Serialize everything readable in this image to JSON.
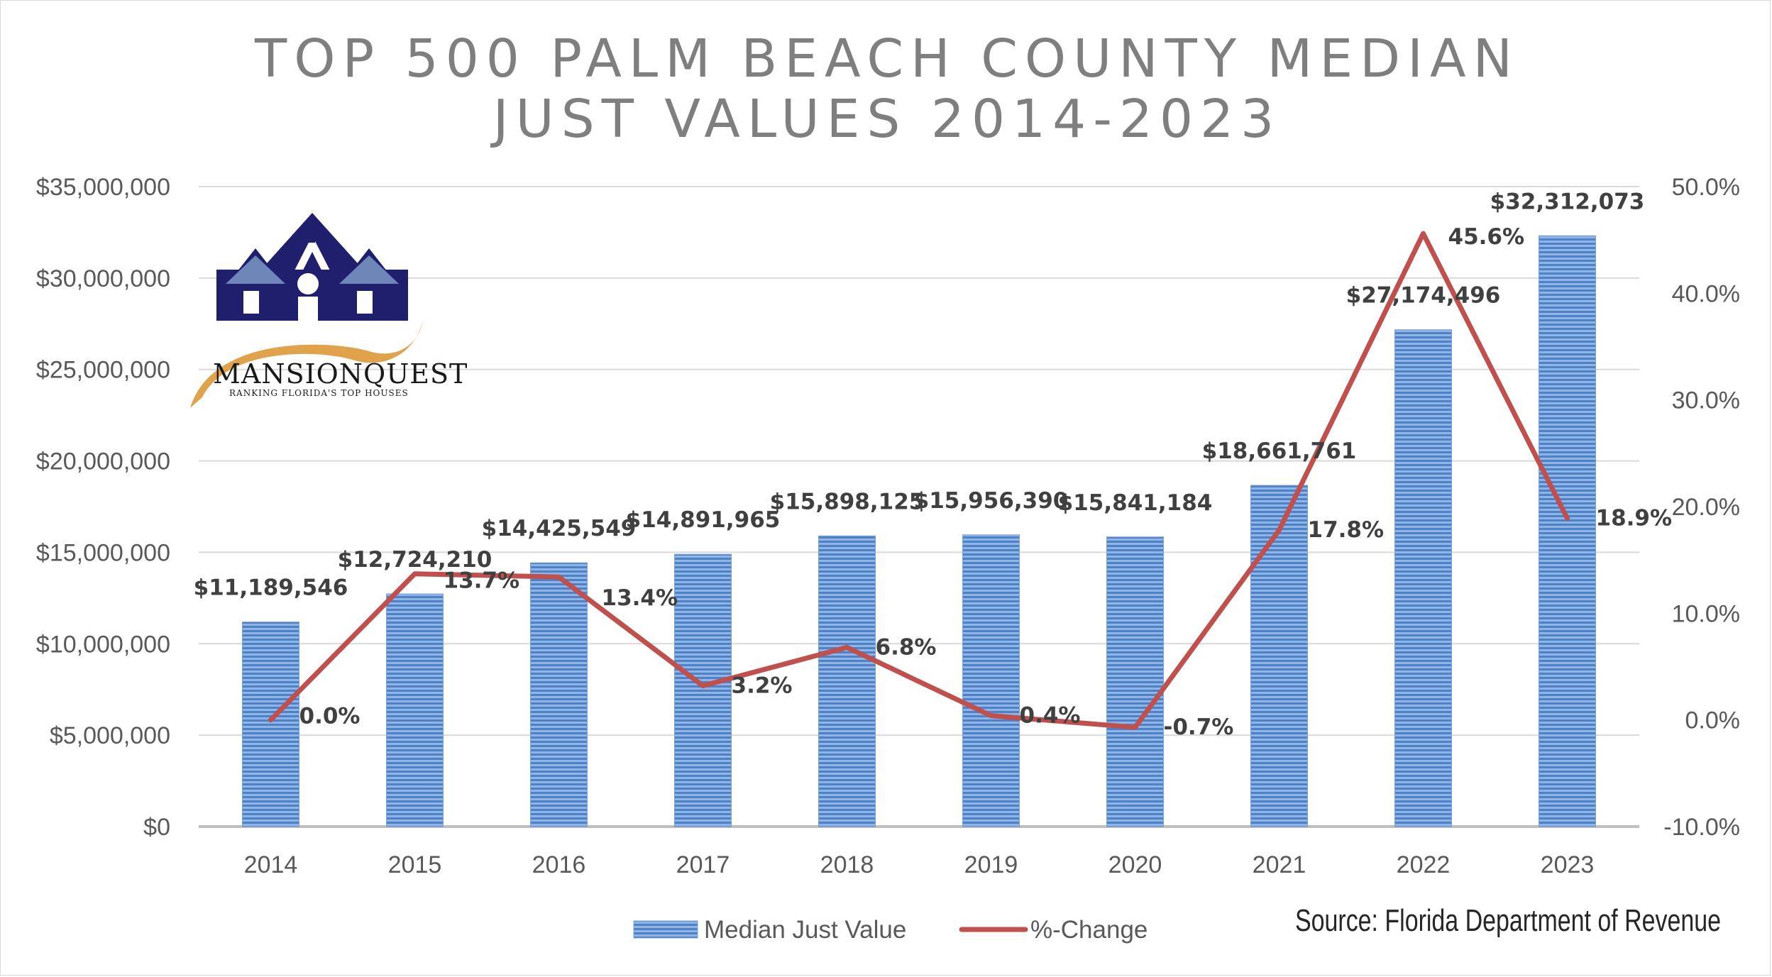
{
  "chart_data": {
    "type": "bar",
    "title": "TOP 500 PALM BEACH COUNTY MEDIAN JUST VALUES 2014-2023",
    "title_lines": [
      "TOP 500 PALM BEACH COUNTY MEDIAN",
      "JUST VALUES 2014-2023"
    ],
    "categories": [
      "2014",
      "2015",
      "2016",
      "2017",
      "2018",
      "2019",
      "2020",
      "2021",
      "2022",
      "2023"
    ],
    "series": [
      {
        "name": "Median Just Value",
        "type": "bar",
        "axis": "left",
        "color": "#5b8fd4",
        "values": [
          11189546,
          12724210,
          14425549,
          14891965,
          15898125,
          15956390,
          15841184,
          18661761,
          27174496,
          32312073
        ],
        "labels": [
          "$11,189,546",
          "$12,724,210",
          "$14,425,549",
          "$14,891,965",
          "$15,898,125",
          "$15,956,390",
          "$15,841,184",
          "$18,661,761",
          "$27,174,496",
          "$32,312,073"
        ]
      },
      {
        "name": "%-Change",
        "type": "line",
        "axis": "right",
        "color": "#c0504d",
        "values": [
          0.0,
          13.7,
          13.4,
          3.2,
          6.8,
          0.4,
          -0.7,
          17.8,
          45.6,
          18.9
        ],
        "labels": [
          "0.0%",
          "13.7%",
          "13.4%",
          "3.2%",
          "6.8%",
          "0.4%",
          "-0.7%",
          "17.8%",
          "45.6%",
          "18.9%"
        ]
      }
    ],
    "y_left": {
      "min": 0,
      "max": 35000000,
      "ticks": [
        "$0",
        "$5,000,000",
        "$10,000,000",
        "$15,000,000",
        "$20,000,000",
        "$25,000,000",
        "$30,000,000",
        "$35,000,000"
      ]
    },
    "y_right": {
      "min": -10,
      "max": 50,
      "ticks": [
        "-10.0%",
        "0.0%",
        "10.0%",
        "20.0%",
        "30.0%",
        "40.0%",
        "50.0%"
      ]
    },
    "grid": true,
    "legend": "bottom",
    "source": "Source: Florida Department of Revenue"
  },
  "logo": {
    "name": "MANSIONQUEST",
    "tagline": "RANKING FLORIDA'S TOP HOUSES"
  }
}
